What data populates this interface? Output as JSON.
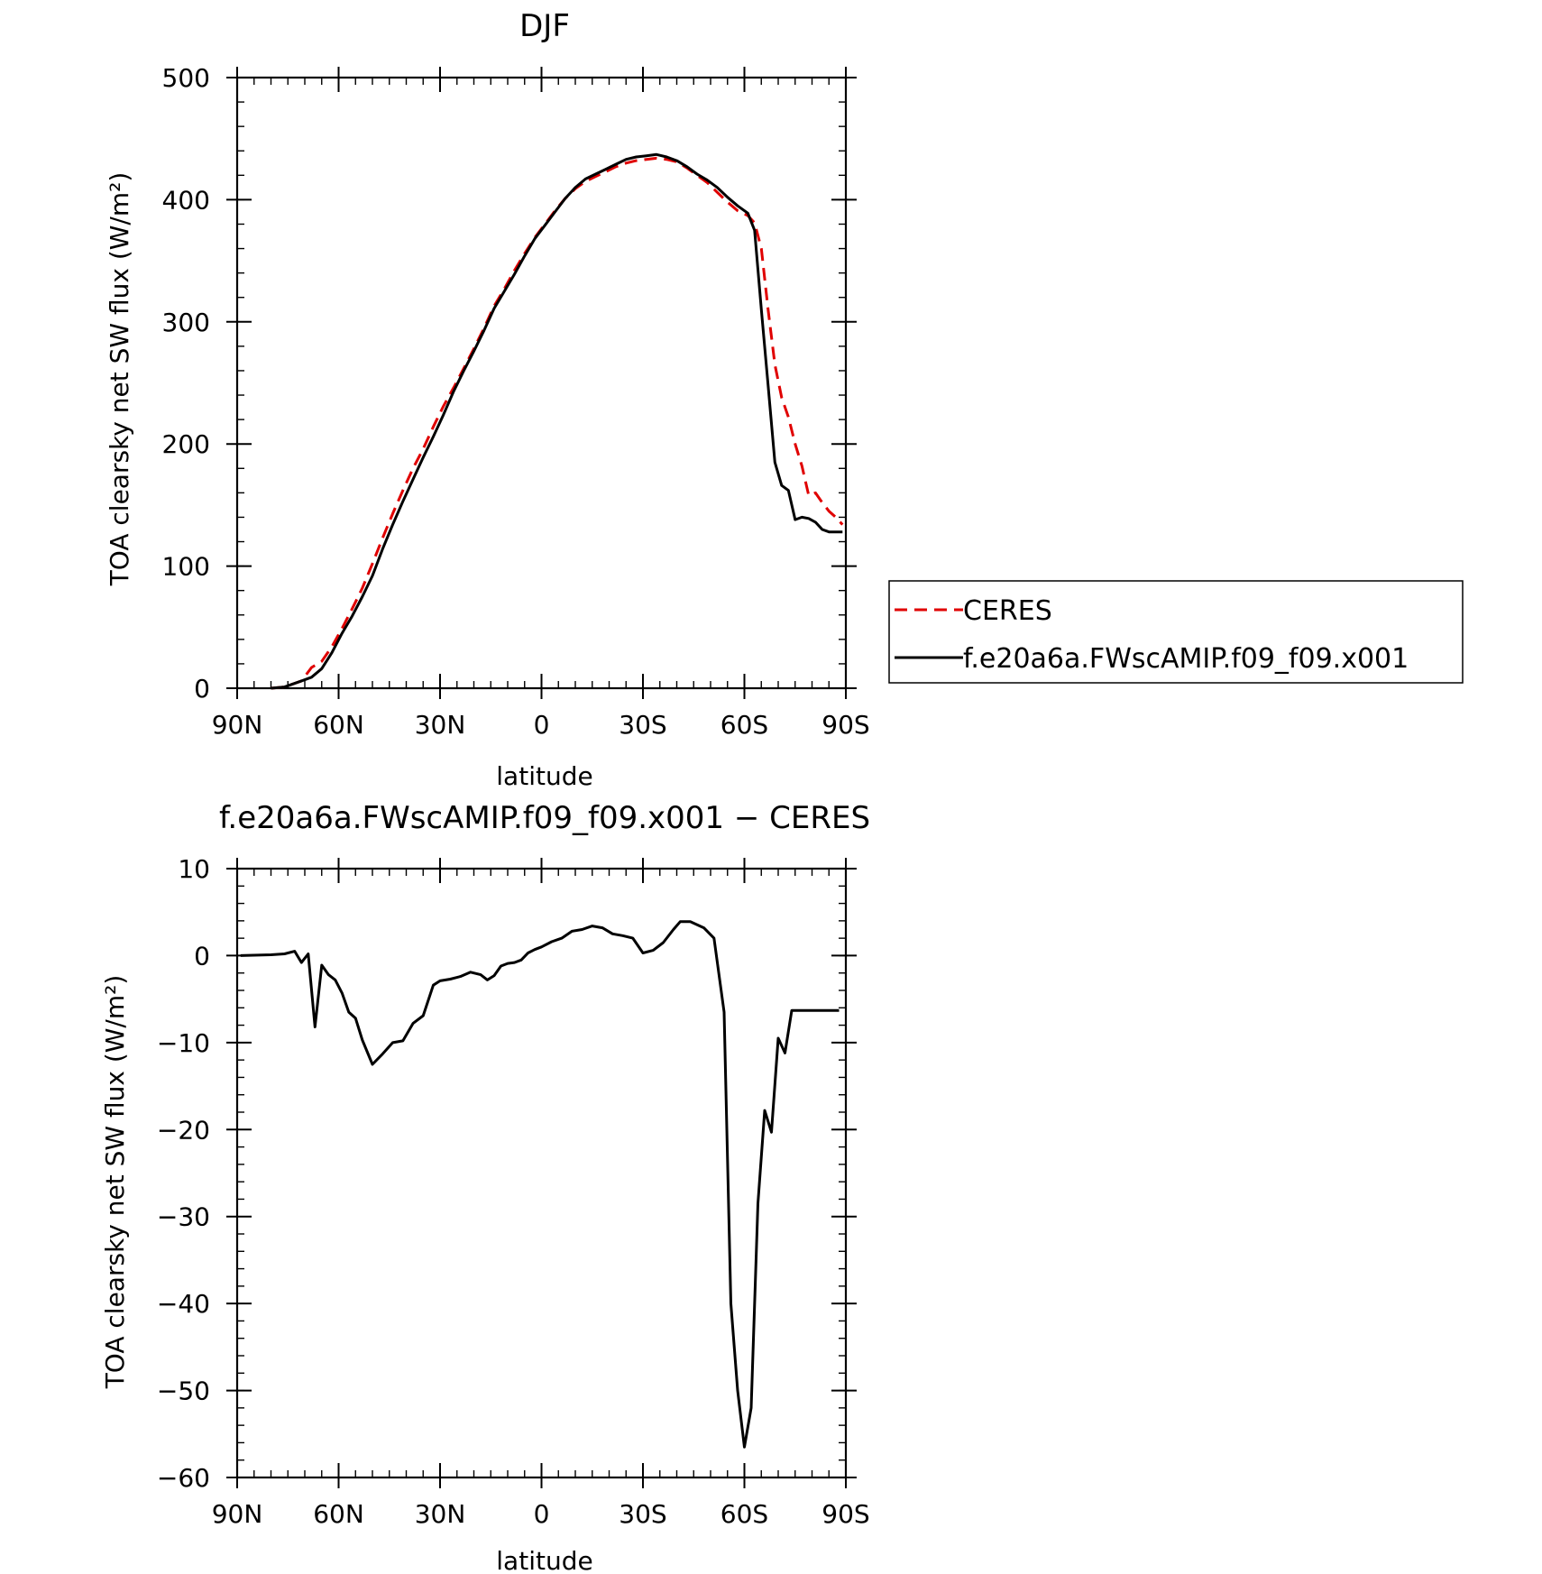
{
  "chart_data": [
    {
      "type": "line",
      "title": "DJF",
      "xlabel": "latitude",
      "ylabel": "TOA clearsky net SW flux (W/m²)",
      "xlim": [
        -90,
        90
      ],
      "ylim": [
        0,
        500
      ],
      "x_tick_values": [
        -90,
        -60,
        -30,
        0,
        30,
        60,
        90
      ],
      "x_tick_labels": [
        "90N",
        "60N",
        "30N",
        "0",
        "30S",
        "60S",
        "90S"
      ],
      "y_tick_values": [
        0,
        100,
        200,
        300,
        400,
        500
      ],
      "y_tick_labels": [
        "0",
        "100",
        "200",
        "300",
        "400",
        "500"
      ],
      "legend": {
        "position": "right",
        "entries": [
          "CERES",
          "f.e20a6a.FWscAMIP.f09_f09.x001"
        ]
      },
      "series": [
        {
          "name": "CERES",
          "color": "#e00000",
          "dash": true,
          "x": [
            -80,
            -76,
            -71,
            -68,
            -65,
            -62,
            -59,
            -56,
            -53,
            -50,
            -47,
            -44,
            -41,
            -38,
            -35,
            -32,
            -29,
            -26,
            -23,
            -20,
            -17,
            -14,
            -11,
            -8,
            -5,
            -2,
            1,
            4,
            7,
            10,
            13,
            16,
            19,
            22,
            25,
            28,
            31,
            34,
            37,
            40,
            43,
            46,
            49,
            52,
            55,
            58,
            61,
            63,
            65,
            67,
            69,
            71,
            73,
            75,
            77,
            79,
            81,
            83,
            85,
            87,
            89
          ],
          "y": [
            0,
            1,
            6,
            17,
            22,
            34,
            49,
            65,
            82,
            102,
            123,
            143,
            162,
            180,
            196,
            214,
            231,
            246,
            262,
            278,
            295,
            313,
            327,
            342,
            356,
            369,
            380,
            391,
            401,
            409,
            415,
            419,
            423,
            427,
            430,
            432,
            433,
            434,
            433,
            431,
            426,
            420,
            414,
            406,
            398,
            391,
            387,
            381,
            360,
            310,
            265,
            238,
            222,
            200,
            182,
            158,
            160,
            152,
            145,
            140,
            134
          ]
        },
        {
          "name": "f.e20a6a.FWscAMIP.f09_f09.x001",
          "color": "#000000",
          "dash": false,
          "x": [
            -80,
            -76,
            -71,
            -68,
            -65,
            -62,
            -59,
            -56,
            -53,
            -50,
            -47,
            -44,
            -41,
            -38,
            -35,
            -32,
            -29,
            -26,
            -23,
            -20,
            -17,
            -14,
            -11,
            -8,
            -5,
            -2,
            1,
            4,
            7,
            10,
            13,
            16,
            19,
            22,
            25,
            28,
            31,
            34,
            37,
            40,
            43,
            46,
            49,
            52,
            55,
            58,
            61,
            63,
            65,
            67,
            69,
            71,
            73,
            75,
            77,
            79,
            81,
            83,
            85,
            87,
            89
          ],
          "y": [
            0,
            1,
            6,
            9,
            16,
            29,
            45,
            59,
            75,
            92,
            114,
            134,
            153,
            171,
            189,
            206,
            224,
            243,
            260,
            276,
            293,
            311,
            325,
            339,
            354,
            368,
            379,
            390,
            401,
            410,
            417,
            421,
            425,
            429,
            433,
            435,
            436,
            437,
            435,
            432,
            427,
            421,
            416,
            410,
            402,
            395,
            389,
            375,
            310,
            248,
            185,
            166,
            162,
            138,
            140,
            139,
            136,
            130,
            128,
            128,
            128
          ]
        }
      ]
    },
    {
      "type": "line",
      "title": "f.e20a6a.FWscAMIP.f09_f09.x001 − CERES",
      "xlabel": "latitude",
      "ylabel": "TOA clearsky net SW flux (W/m²)",
      "xlim": [
        -90,
        90
      ],
      "ylim": [
        -60,
        10
      ],
      "x_tick_values": [
        -90,
        -60,
        -30,
        0,
        30,
        60,
        90
      ],
      "x_tick_labels": [
        "90N",
        "60N",
        "30N",
        "0",
        "30S",
        "60S",
        "90S"
      ],
      "y_tick_values": [
        -60,
        -50,
        -40,
        -30,
        -20,
        -10,
        0,
        10
      ],
      "y_tick_labels": [
        "−60",
        "−50",
        "−40",
        "−30",
        "−20",
        "−10",
        "0",
        "10"
      ],
      "series": [
        {
          "color": "#000000",
          "dash": false,
          "x": [
            -89,
            -80,
            -76,
            -73,
            -71,
            -69,
            -67,
            -65,
            -63,
            -61,
            -59,
            -57,
            -55,
            -53,
            -50,
            -47,
            -44,
            -41,
            -38,
            -35,
            -32,
            -30,
            -27,
            -24,
            -21,
            -18,
            -16,
            -14,
            -12,
            -10,
            -8,
            -6,
            -4,
            -2,
            0,
            3,
            6,
            9,
            12,
            15,
            18,
            21,
            24,
            27,
            30,
            33,
            36,
            39,
            41,
            44,
            48,
            51,
            54,
            56,
            58,
            60,
            62,
            64,
            66,
            68,
            70,
            72,
            74,
            76,
            78,
            80,
            82,
            84,
            86,
            88
          ],
          "y": [
            0,
            0.1,
            0.2,
            0.5,
            -0.8,
            0.2,
            -8.2,
            -1.1,
            -2.2,
            -2.8,
            -4.3,
            -6.5,
            -7.2,
            -9.7,
            -12.5,
            -11.3,
            -10.0,
            -9.8,
            -7.8,
            -6.9,
            -3.4,
            -2.9,
            -2.7,
            -2.4,
            -1.9,
            -2.2,
            -2.8,
            -2.3,
            -1.2,
            -0.9,
            -0.8,
            -0.5,
            0.3,
            0.7,
            1.0,
            1.6,
            2.0,
            2.8,
            3.0,
            3.4,
            3.2,
            2.5,
            2.3,
            2.0,
            0.3,
            0.6,
            1.5,
            3.0,
            3.9,
            3.9,
            3.2,
            2.0,
            -6.5,
            -40.0,
            -50.0,
            -56.5,
            -52.0,
            -28.5,
            -17.8,
            -20.3,
            -9.5,
            -11.2,
            -6.3,
            -6.3,
            -6.3,
            -6.3,
            -6.3,
            -6.3,
            -6.3,
            -6.3
          ]
        }
      ]
    }
  ]
}
